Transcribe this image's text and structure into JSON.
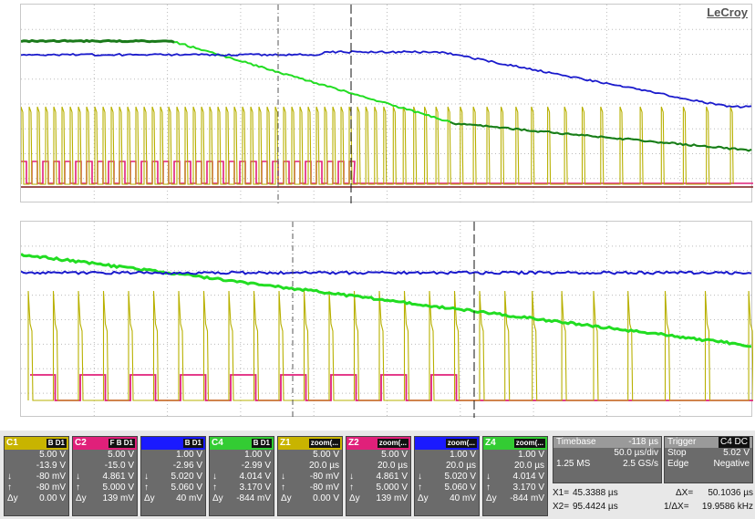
{
  "brand": "LeCroy",
  "channels": [
    {
      "name": "C1",
      "badge": "B D1",
      "hdr_color": "#c8b400",
      "rows": [
        [
          "",
          "5.00 V"
        ],
        [
          "",
          "-13.9 V"
        ],
        [
          "↓",
          "-80 mV"
        ],
        [
          "↑",
          "-80 mV"
        ],
        [
          "Δy",
          "0.00 V"
        ]
      ]
    },
    {
      "name": "C2",
      "badge": "F B D1",
      "hdr_color": "#e0207a",
      "rows": [
        [
          "",
          "5.00 V"
        ],
        [
          "",
          "-15.0 V"
        ],
        [
          "↓",
          "4.861 V"
        ],
        [
          "↑",
          "5.000 V"
        ],
        [
          "Δy",
          "139 mV"
        ]
      ]
    },
    {
      "name": "",
      "badge": "B D1",
      "hdr_color": "#1a1aff",
      "rows": [
        [
          "",
          "1.00 V"
        ],
        [
          "",
          "-2.96 V"
        ],
        [
          "↓",
          "5.020 V"
        ],
        [
          "↑",
          "5.060 V"
        ],
        [
          "Δy",
          "40 mV"
        ]
      ]
    },
    {
      "name": "C4",
      "badge": "B D1",
      "hdr_color": "#33cc33",
      "rows": [
        [
          "",
          "1.00 V"
        ],
        [
          "",
          "-2.99 V"
        ],
        [
          "↓",
          "4.014 V"
        ],
        [
          "↑",
          "3.170 V"
        ],
        [
          "Δy",
          "-844 mV"
        ]
      ]
    },
    {
      "name": "Z1",
      "badge": "zoom(...",
      "hdr_color": "#c8b400",
      "rows": [
        [
          "",
          "5.00 V"
        ],
        [
          "",
          "20.0 µs"
        ],
        [
          "↓",
          "-80 mV"
        ],
        [
          "↑",
          "-80 mV"
        ],
        [
          "Δy",
          "0.00 V"
        ]
      ]
    },
    {
      "name": "Z2",
      "badge": "zoom(...",
      "hdr_color": "#e0207a",
      "rows": [
        [
          "",
          "5.00 V"
        ],
        [
          "",
          "20.0 µs"
        ],
        [
          "↓",
          "4.861 V"
        ],
        [
          "↑",
          "5.000 V"
        ],
        [
          "Δy",
          "139 mV"
        ]
      ]
    },
    {
      "name": "",
      "badge": "zoom(...",
      "hdr_color": "#1a1aff",
      "rows": [
        [
          "",
          "1.00 V"
        ],
        [
          "",
          "20.0 µs"
        ],
        [
          "↓",
          "5.020 V"
        ],
        [
          "↑",
          "5.060 V"
        ],
        [
          "Δy",
          "40 mV"
        ]
      ]
    },
    {
      "name": "Z4",
      "badge": "zoom(...",
      "hdr_color": "#33cc33",
      "rows": [
        [
          "",
          "1.00 V"
        ],
        [
          "",
          "20.0 µs"
        ],
        [
          "↓",
          "4.014 V"
        ],
        [
          "↑",
          "3.170 V"
        ],
        [
          "Δy",
          "-844 mV"
        ]
      ]
    }
  ],
  "timebase": {
    "label": "Timebase",
    "offset": "-118 µs",
    "per_div": "50.0 µs/div",
    "samples": "1.25 MS",
    "rate": "2.5 GS/s"
  },
  "trigger": {
    "label": "Trigger",
    "badge": "C4 DC",
    "mode": "Stop",
    "level": "5.02 V",
    "type": "Edge",
    "slope": "Negative"
  },
  "measure": {
    "x1_label": "X1=",
    "x1": "45.3388 µs",
    "dx_label": "ΔX=",
    "dx": "50.1036 µs",
    "x2_label": "X2=",
    "x2": "95.4424 µs",
    "inv_label": "1/ΔX=",
    "inv": "19.9586 kHz"
  },
  "colors": {
    "yellow": "#b8b000",
    "magenta": "#e0207a",
    "blue": "#1a1acc",
    "darkblue": "#10107a",
    "green": "#22dd22",
    "darkgreen": "#1a7a1a"
  }
}
